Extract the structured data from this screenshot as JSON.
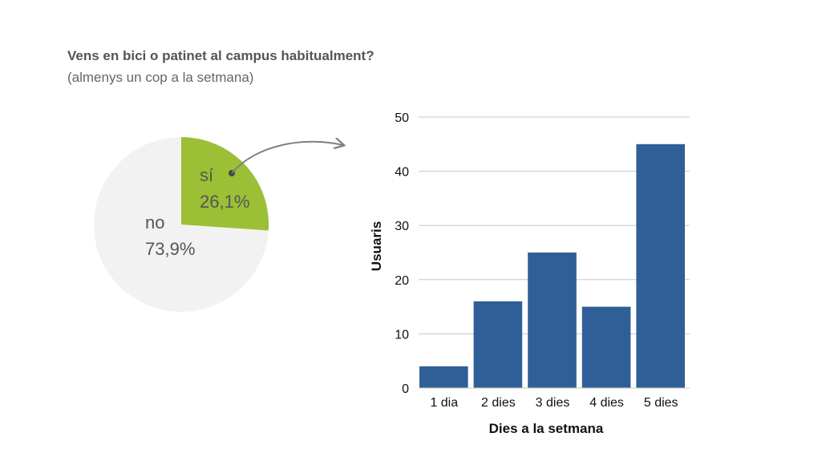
{
  "title": "Vens en bici o patinet al campus habitualment?",
  "subtitle": "(almenys un cop a la setmana)",
  "chart_data": [
    {
      "type": "pie",
      "slices": [
        {
          "label": "sí",
          "value": 26.1,
          "display": "26,1%",
          "color": "#9BBF35"
        },
        {
          "label": "no",
          "value": 73.9,
          "display": "73,9%",
          "color": "#F2F2F2"
        }
      ]
    },
    {
      "type": "bar",
      "categories": [
        "1 dia",
        "2 dies",
        "3 dies",
        "4 dies",
        "5 dies"
      ],
      "values": [
        4,
        16,
        25,
        15,
        45
      ],
      "xlabel": "Dies a la setmana",
      "ylabel": "Usuaris",
      "ylim": [
        0,
        50
      ],
      "yticks": [
        "0",
        "10",
        "20",
        "30",
        "40",
        "50"
      ],
      "grid": true,
      "bar_color": "#2E5F97"
    }
  ]
}
